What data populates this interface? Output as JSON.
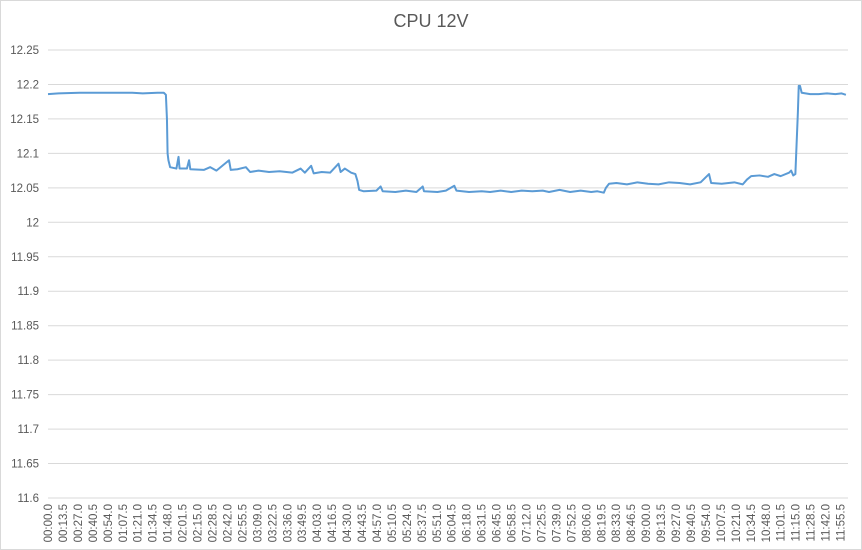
{
  "chart_data": {
    "type": "line",
    "title": "CPU 12V",
    "xlabel": "",
    "ylabel": "",
    "ylim": [
      11.6,
      12.25
    ],
    "y_ticks": [
      "12.25",
      "12.2",
      "12.15",
      "12.1",
      "12.05",
      "12",
      "11.95",
      "11.9",
      "11.85",
      "11.8",
      "11.75",
      "11.7",
      "11.65",
      "11.6"
    ],
    "x_tick_labels": [
      "00:00.0",
      "00:13.5",
      "00:27.0",
      "00:40.5",
      "00:54.0",
      "01:07.5",
      "01:21.0",
      "01:34.5",
      "01:48.0",
      "02:01.5",
      "02:15.0",
      "02:28.5",
      "02:42.0",
      "02:55.5",
      "03:09.0",
      "03:22.5",
      "03:36.0",
      "03:49.5",
      "04:03.0",
      "04:16.5",
      "04:30.0",
      "04:43.5",
      "04:57.0",
      "05:10.5",
      "05:24.0",
      "05:37.5",
      "05:51.0",
      "06:04.5",
      "06:18.0",
      "06:31.5",
      "06:45.0",
      "06:58.5",
      "07:12.0",
      "07:25.5",
      "07:39.0",
      "07:52.5",
      "08:06.0",
      "08:19.5",
      "08:33.0",
      "08:46.5",
      "09:00.0",
      "09:13.5",
      "09:27.0",
      "09:40.5",
      "09:54.0",
      "10:07.5",
      "10:21.0",
      "10:34.5",
      "10:48.0",
      "11:01.5",
      "11:15.0",
      "11:28.5",
      "11:42.0",
      "11:55.5"
    ],
    "grid": true,
    "legend": "none",
    "line_color": "#5B9BD5",
    "series": [
      {
        "points": [
          [
            0,
            12.186
          ],
          [
            50,
            12.187
          ],
          [
            150,
            12.188
          ],
          [
            400,
            12.188
          ],
          [
            450,
            12.187
          ],
          [
            520,
            12.188
          ],
          [
            550,
            12.188
          ],
          [
            560,
            12.185
          ],
          [
            565,
            12.15
          ],
          [
            568,
            12.1
          ],
          [
            572,
            12.09
          ],
          [
            580,
            12.08
          ],
          [
            610,
            12.078
          ],
          [
            620,
            12.095
          ],
          [
            625,
            12.078
          ],
          [
            660,
            12.078
          ],
          [
            670,
            12.09
          ],
          [
            676,
            12.077
          ],
          [
            740,
            12.076
          ],
          [
            770,
            12.08
          ],
          [
            800,
            12.075
          ],
          [
            860,
            12.09
          ],
          [
            868,
            12.076
          ],
          [
            900,
            12.077
          ],
          [
            940,
            12.08
          ],
          [
            960,
            12.073
          ],
          [
            1000,
            12.075
          ],
          [
            1050,
            12.073
          ],
          [
            1100,
            12.074
          ],
          [
            1160,
            12.072
          ],
          [
            1200,
            12.078
          ],
          [
            1220,
            12.072
          ],
          [
            1250,
            12.082
          ],
          [
            1262,
            12.071
          ],
          [
            1300,
            12.073
          ],
          [
            1340,
            12.072
          ],
          [
            1380,
            12.085
          ],
          [
            1390,
            12.073
          ],
          [
            1410,
            12.078
          ],
          [
            1440,
            12.072
          ],
          [
            1460,
            12.07
          ],
          [
            1470,
            12.06
          ],
          [
            1478,
            12.047
          ],
          [
            1500,
            12.045
          ],
          [
            1560,
            12.046
          ],
          [
            1580,
            12.052
          ],
          [
            1590,
            12.045
          ],
          [
            1650,
            12.044
          ],
          [
            1700,
            12.046
          ],
          [
            1750,
            12.044
          ],
          [
            1780,
            12.052
          ],
          [
            1786,
            12.045
          ],
          [
            1850,
            12.044
          ],
          [
            1890,
            12.046
          ],
          [
            1930,
            12.053
          ],
          [
            1940,
            12.046
          ],
          [
            2000,
            12.044
          ],
          [
            2060,
            12.045
          ],
          [
            2100,
            12.044
          ],
          [
            2150,
            12.046
          ],
          [
            2200,
            12.044
          ],
          [
            2250,
            12.046
          ],
          [
            2300,
            12.045
          ],
          [
            2350,
            12.046
          ],
          [
            2380,
            12.044
          ],
          [
            2430,
            12.047
          ],
          [
            2480,
            12.044
          ],
          [
            2530,
            12.046
          ],
          [
            2580,
            12.044
          ],
          [
            2610,
            12.045
          ],
          [
            2640,
            12.043
          ],
          [
            2650,
            12.05
          ],
          [
            2665,
            12.056
          ],
          [
            2700,
            12.057
          ],
          [
            2750,
            12.055
          ],
          [
            2800,
            12.058
          ],
          [
            2850,
            12.056
          ],
          [
            2900,
            12.055
          ],
          [
            2950,
            12.058
          ],
          [
            3000,
            12.057
          ],
          [
            3050,
            12.055
          ],
          [
            3100,
            12.058
          ],
          [
            3140,
            12.07
          ],
          [
            3150,
            12.057
          ],
          [
            3200,
            12.056
          ],
          [
            3260,
            12.058
          ],
          [
            3300,
            12.055
          ],
          [
            3320,
            12.062
          ],
          [
            3340,
            12.067
          ],
          [
            3380,
            12.068
          ],
          [
            3420,
            12.066
          ],
          [
            3450,
            12.07
          ],
          [
            3480,
            12.067
          ],
          [
            3520,
            12.072
          ],
          [
            3530,
            12.075
          ],
          [
            3540,
            12.068
          ],
          [
            3550,
            12.07
          ],
          [
            3562,
            12.16
          ],
          [
            3566,
            12.198
          ],
          [
            3572,
            12.198
          ],
          [
            3580,
            12.188
          ],
          [
            3620,
            12.186
          ],
          [
            3660,
            12.186
          ],
          [
            3700,
            12.187
          ],
          [
            3740,
            12.186
          ],
          [
            3770,
            12.187
          ],
          [
            3790,
            12.185
          ]
        ]
      }
    ]
  }
}
